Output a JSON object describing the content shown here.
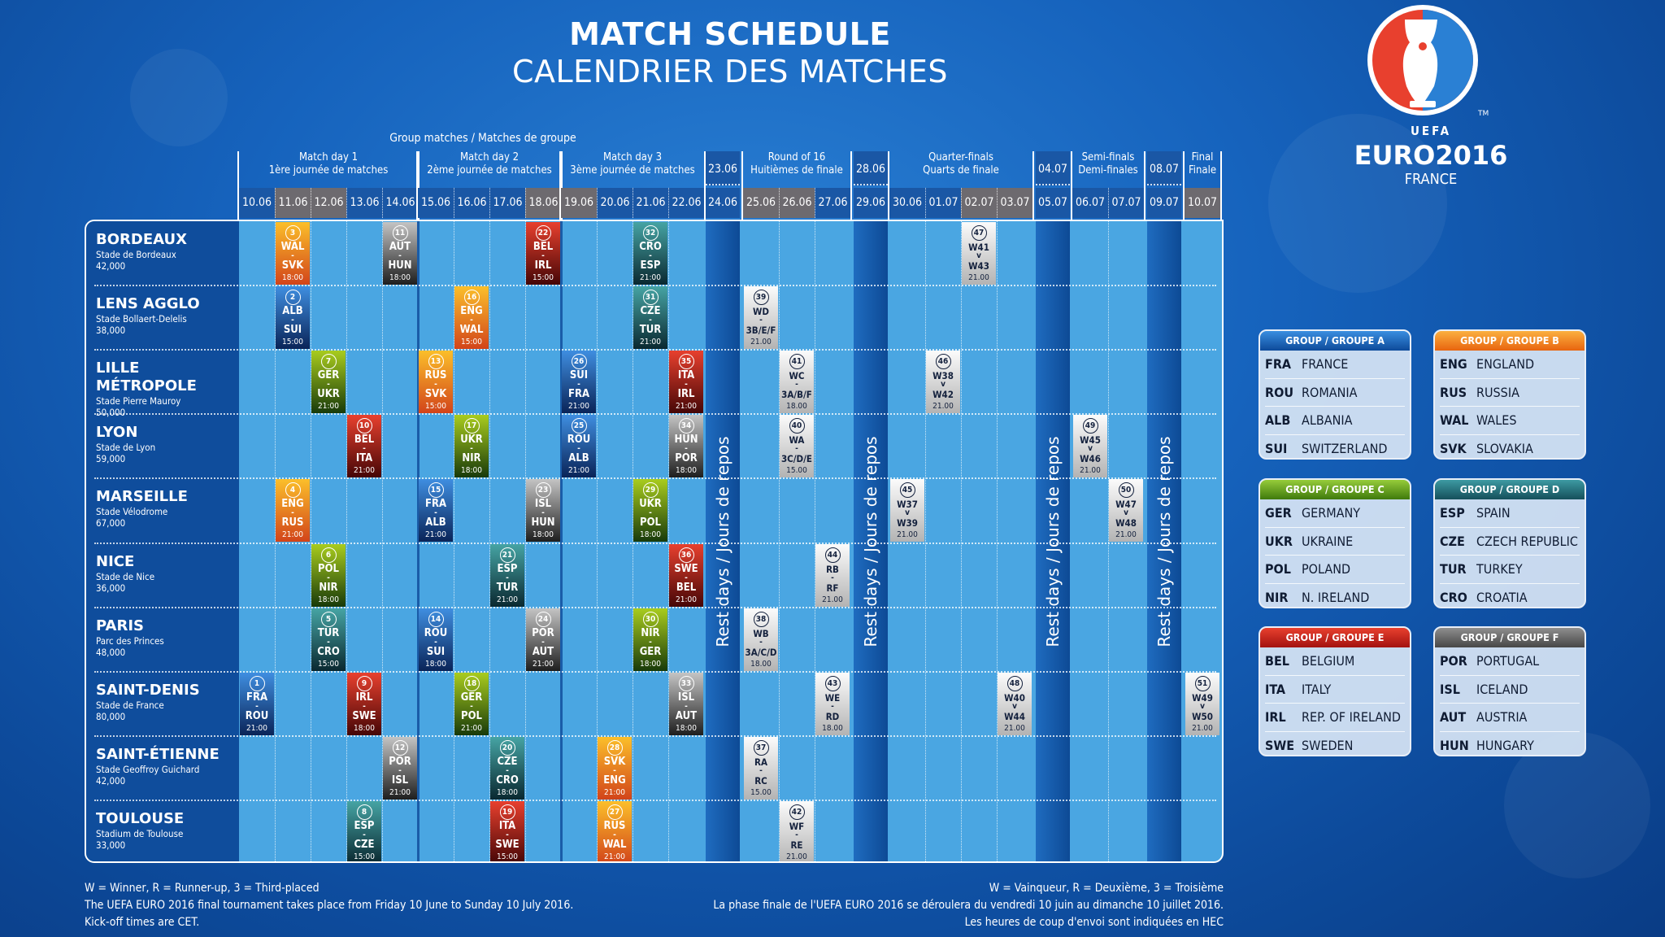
{
  "title": {
    "line1": "MATCH SCHEDULE",
    "line2": "CALENDRIER DES MATCHES"
  },
  "logo": {
    "uefa": "UEFA",
    "euro": "EURO2016",
    "country": "FRANCE",
    "tm": "TM"
  },
  "header": {
    "group_matches": "Group matches / Matches de groupe",
    "phases": [
      {
        "label": "Match day 1",
        "sublabel": "1ère journée de matches",
        "dates": [
          "10.06",
          "11.06",
          "12.06",
          "13.06",
          "14.06"
        ]
      },
      {
        "label": "Match day 2",
        "sublabel": "2ème journée de matches",
        "dates": [
          "15.06",
          "16.06",
          "17.06",
          "18.06"
        ]
      },
      {
        "label": "Match day 3",
        "sublabel": "3ème journée de matches",
        "dates": [
          "19.06",
          "20.06",
          "21.06",
          "22.06"
        ]
      },
      {
        "rest": true,
        "top_date": "23.06",
        "dates": [
          "24.06"
        ]
      },
      {
        "label": "Round of 16",
        "sublabel": "Huitièmes de finale",
        "dates": [
          "25.06",
          "26.06",
          "27.06"
        ]
      },
      {
        "rest": true,
        "top_date": "28.06",
        "dates": [
          "29.06"
        ]
      },
      {
        "label": "Quarter-finals",
        "sublabel": "Quarts de finale",
        "dates": [
          "30.06",
          "01.07",
          "02.07",
          "03.07"
        ]
      },
      {
        "rest": true,
        "top_date": "04.07",
        "dates": [
          "05.07"
        ]
      },
      {
        "label": "Semi-finals",
        "sublabel": "Demi-finales",
        "dates": [
          "06.07",
          "07.07"
        ]
      },
      {
        "rest": true,
        "top_date": "08.07",
        "dates": [
          "09.07"
        ]
      },
      {
        "label": "Final",
        "sublabel": "Finale",
        "dates": [
          "10.07"
        ]
      }
    ],
    "weekend_dates": [
      "11.06",
      "12.06",
      "18.06",
      "19.06",
      "25.06",
      "26.06",
      "02.07",
      "03.07",
      "10.07"
    ],
    "rest_label": "Rest days / Jours de repos"
  },
  "colors": {
    "A": [
      "#3f8ee0",
      "#0a2458"
    ],
    "B": [
      "#fbbf2a",
      "#d2441a"
    ],
    "C": [
      "#a9cc1e",
      "#183a0a"
    ],
    "D": [
      "#46a4a4",
      "#0a2830"
    ],
    "E": [
      "#e8402e",
      "#450606"
    ],
    "F": [
      "#c4c4c4",
      "#1e1e1e"
    ],
    "weekday": "#1a57a5",
    "weekend": "#6d6a6f",
    "grid": "#4aa6e2",
    "venue_panel": "#0f4d9c"
  },
  "venues": [
    {
      "name": "BORDEAUX",
      "stadium": "Stade de Bordeaux",
      "capacity": "42,000"
    },
    {
      "name": "LENS AGGLO",
      "stadium": "Stade Bollaert-Delelis",
      "capacity": "38,000"
    },
    {
      "name": "LILLE MÉTROPOLE",
      "stadium": "Stade Pierre Mauroy",
      "capacity": "50,000"
    },
    {
      "name": "LYON",
      "stadium": "Stade de Lyon",
      "capacity": "59,000"
    },
    {
      "name": "MARSEILLE",
      "stadium": "Stade Vélodrome",
      "capacity": "67,000"
    },
    {
      "name": "NICE",
      "stadium": "Stade de Nice",
      "capacity": "36,000"
    },
    {
      "name": "PARIS",
      "stadium": "Parc des Princes",
      "capacity": "48,000"
    },
    {
      "name": "SAINT-DENIS",
      "stadium": "Stade de France",
      "capacity": "80,000"
    },
    {
      "name": "SAINT-ÉTIENNE",
      "stadium": "Stade Geoffroy Guichard",
      "capacity": "42,000"
    },
    {
      "name": "TOULOUSE",
      "stadium": "Stadium de Toulouse",
      "capacity": "33,000"
    }
  ],
  "matches": [
    {
      "no": "1",
      "venue": 7,
      "date": "10.06",
      "home": "FRA",
      "away": "ROU",
      "time": "21:00",
      "group": "A",
      "sep": "-"
    },
    {
      "no": "2",
      "venue": 1,
      "date": "11.06",
      "home": "ALB",
      "away": "SUI",
      "time": "15:00",
      "group": "A",
      "sep": "-"
    },
    {
      "no": "3",
      "venue": 0,
      "date": "11.06",
      "home": "WAL",
      "away": "SVK",
      "time": "18:00",
      "group": "B",
      "sep": "-"
    },
    {
      "no": "4",
      "venue": 4,
      "date": "11.06",
      "home": "ENG",
      "away": "RUS",
      "time": "21:00",
      "group": "B",
      "sep": "-"
    },
    {
      "no": "5",
      "venue": 6,
      "date": "12.06",
      "home": "TUR",
      "away": "CRO",
      "time": "15:00",
      "group": "D",
      "sep": "-"
    },
    {
      "no": "6",
      "venue": 5,
      "date": "12.06",
      "home": "POL",
      "away": "NIR",
      "time": "18:00",
      "group": "C",
      "sep": "-"
    },
    {
      "no": "7",
      "venue": 2,
      "date": "12.06",
      "home": "GER",
      "away": "UKR",
      "time": "21:00",
      "group": "C",
      "sep": "-"
    },
    {
      "no": "8",
      "venue": 9,
      "date": "13.06",
      "home": "ESP",
      "away": "CZE",
      "time": "15:00",
      "group": "D",
      "sep": "-"
    },
    {
      "no": "9",
      "venue": 7,
      "date": "13.06",
      "home": "IRL",
      "away": "SWE",
      "time": "18:00",
      "group": "E",
      "sep": "-"
    },
    {
      "no": "10",
      "venue": 3,
      "date": "13.06",
      "home": "BEL",
      "away": "ITA",
      "time": "21:00",
      "group": "E",
      "sep": "-"
    },
    {
      "no": "11",
      "venue": 0,
      "date": "14.06",
      "home": "AUT",
      "away": "HUN",
      "time": "18:00",
      "group": "F",
      "sep": "-"
    },
    {
      "no": "12",
      "venue": 8,
      "date": "14.06",
      "home": "POR",
      "away": "ISL",
      "time": "21:00",
      "group": "F",
      "sep": "-"
    },
    {
      "no": "13",
      "venue": 2,
      "date": "15.06",
      "home": "RUS",
      "away": "SVK",
      "time": "15:00",
      "group": "B",
      "sep": "-"
    },
    {
      "no": "14",
      "venue": 6,
      "date": "15.06",
      "home": "ROU",
      "away": "SUI",
      "time": "18:00",
      "group": "A",
      "sep": "-"
    },
    {
      "no": "15",
      "venue": 4,
      "date": "15.06",
      "home": "FRA",
      "away": "ALB",
      "time": "21:00",
      "group": "A",
      "sep": "-"
    },
    {
      "no": "16",
      "venue": 1,
      "date": "16.06",
      "home": "ENG",
      "away": "WAL",
      "time": "15:00",
      "group": "B",
      "sep": "-"
    },
    {
      "no": "17",
      "venue": 3,
      "date": "16.06",
      "home": "UKR",
      "away": "NIR",
      "time": "18:00",
      "group": "C",
      "sep": "-"
    },
    {
      "no": "18",
      "venue": 7,
      "date": "16.06",
      "home": "GER",
      "away": "POL",
      "time": "21:00",
      "group": "C",
      "sep": "-"
    },
    {
      "no": "19",
      "venue": 9,
      "date": "17.06",
      "home": "ITA",
      "away": "SWE",
      "time": "15:00",
      "group": "E",
      "sep": "-"
    },
    {
      "no": "20",
      "venue": 8,
      "date": "17.06",
      "home": "CZE",
      "away": "CRO",
      "time": "18:00",
      "group": "D",
      "sep": "-"
    },
    {
      "no": "21",
      "venue": 5,
      "date": "17.06",
      "home": "ESP",
      "away": "TUR",
      "time": "21:00",
      "group": "D",
      "sep": "-"
    },
    {
      "no": "22",
      "venue": 0,
      "date": "18.06",
      "home": "BEL",
      "away": "IRL",
      "time": "15:00",
      "group": "E",
      "sep": "-"
    },
    {
      "no": "23",
      "venue": 4,
      "date": "18.06",
      "home": "ISL",
      "away": "HUN",
      "time": "18:00",
      "group": "F",
      "sep": "-"
    },
    {
      "no": "24",
      "venue": 6,
      "date": "18.06",
      "home": "POR",
      "away": "AUT",
      "time": "21:00",
      "group": "F",
      "sep": "-"
    },
    {
      "no": "25",
      "venue": 3,
      "date": "19.06",
      "home": "ROU",
      "away": "ALB",
      "time": "21:00",
      "group": "A",
      "sep": "-"
    },
    {
      "no": "26",
      "venue": 2,
      "date": "19.06",
      "home": "SUI",
      "away": "FRA",
      "time": "21:00",
      "group": "A",
      "sep": "-"
    },
    {
      "no": "27",
      "venue": 9,
      "date": "20.06",
      "home": "RUS",
      "away": "WAL",
      "time": "21:00",
      "group": "B",
      "sep": "-"
    },
    {
      "no": "28",
      "venue": 8,
      "date": "20.06",
      "home": "SVK",
      "away": "ENG",
      "time": "21:00",
      "group": "B",
      "sep": "-"
    },
    {
      "no": "29",
      "venue": 4,
      "date": "21.06",
      "home": "UKR",
      "away": "POL",
      "time": "18:00",
      "group": "C",
      "sep": "-"
    },
    {
      "no": "30",
      "venue": 6,
      "date": "21.06",
      "home": "NIR",
      "away": "GER",
      "time": "18:00",
      "group": "C",
      "sep": "-"
    },
    {
      "no": "31",
      "venue": 1,
      "date": "21.06",
      "home": "CZE",
      "away": "TUR",
      "time": "21:00",
      "group": "D",
      "sep": "-"
    },
    {
      "no": "32",
      "venue": 0,
      "date": "21.06",
      "home": "CRO",
      "away": "ESP",
      "time": "21:00",
      "group": "D",
      "sep": "-"
    },
    {
      "no": "33",
      "venue": 7,
      "date": "22.06",
      "home": "ISL",
      "away": "AUT",
      "time": "18:00",
      "group": "F",
      "sep": "-"
    },
    {
      "no": "34",
      "venue": 3,
      "date": "22.06",
      "home": "HUN",
      "away": "POR",
      "time": "18:00",
      "group": "F",
      "sep": "-"
    },
    {
      "no": "35",
      "venue": 2,
      "date": "22.06",
      "home": "ITA",
      "away": "IRL",
      "time": "21:00",
      "group": "E",
      "sep": "-"
    },
    {
      "no": "36",
      "venue": 5,
      "date": "22.06",
      "home": "SWE",
      "away": "BEL",
      "time": "21:00",
      "group": "E",
      "sep": "-"
    },
    {
      "no": "37",
      "venue": 8,
      "date": "25.06",
      "home": "RA",
      "away": "RC",
      "time": "15.00",
      "sep": "-"
    },
    {
      "no": "38",
      "venue": 6,
      "date": "25.06",
      "home": "WB",
      "away": "3A/C/D",
      "time": "18.00",
      "sep": "-"
    },
    {
      "no": "39",
      "venue": 1,
      "date": "25.06",
      "home": "WD",
      "away": "3B/E/F",
      "time": "21.00",
      "sep": "-"
    },
    {
      "no": "40",
      "venue": 3,
      "date": "26.06",
      "home": "WA",
      "away": "3C/D/E",
      "time": "15.00",
      "sep": "-"
    },
    {
      "no": "41",
      "venue": 2,
      "date": "26.06",
      "home": "WC",
      "away": "3A/B/F",
      "time": "18.00",
      "sep": "-"
    },
    {
      "no": "42",
      "venue": 9,
      "date": "26.06",
      "home": "WF",
      "away": "RE",
      "time": "21.00",
      "sep": "-"
    },
    {
      "no": "43",
      "venue": 7,
      "date": "27.06",
      "home": "WE",
      "away": "RD",
      "time": "18.00",
      "sep": "-"
    },
    {
      "no": "44",
      "venue": 5,
      "date": "27.06",
      "home": "RB",
      "away": "RF",
      "time": "21.00",
      "sep": "-"
    },
    {
      "no": "45",
      "venue": 4,
      "date": "30.06",
      "home": "W37",
      "away": "W39",
      "time": "21.00",
      "sep": "v"
    },
    {
      "no": "46",
      "venue": 2,
      "date": "01.07",
      "home": "W38",
      "away": "W42",
      "time": "21.00",
      "sep": "v"
    },
    {
      "no": "47",
      "venue": 0,
      "date": "02.07",
      "home": "W41",
      "away": "W43",
      "time": "21.00",
      "sep": "v"
    },
    {
      "no": "48",
      "venue": 7,
      "date": "03.07",
      "home": "W40",
      "away": "W44",
      "time": "21.00",
      "sep": "v"
    },
    {
      "no": "49",
      "venue": 3,
      "date": "06.07",
      "home": "W45",
      "away": "W46",
      "time": "21.00",
      "sep": "v"
    },
    {
      "no": "50",
      "venue": 4,
      "date": "07.07",
      "home": "W47",
      "away": "W48",
      "time": "21.00",
      "sep": "v"
    },
    {
      "no": "51",
      "venue": 7,
      "date": "10.07",
      "home": "W49",
      "away": "W50",
      "time": "21.00",
      "sep": "v"
    }
  ],
  "groups": [
    {
      "title": "GROUP / GROUPE A",
      "key": "A",
      "header": [
        "#3a8ee0",
        "#0d4a9a"
      ],
      "teams": [
        [
          "FRA",
          "FRANCE"
        ],
        [
          "ROU",
          "ROMANIA"
        ],
        [
          "ALB",
          "ALBANIA"
        ],
        [
          "SUI",
          "SWITZERLAND"
        ]
      ]
    },
    {
      "title": "GROUP / GROUPE B",
      "key": "B",
      "header": [
        "#fbb040",
        "#e8640f"
      ],
      "teams": [
        [
          "ENG",
          "ENGLAND"
        ],
        [
          "RUS",
          "RUSSIA"
        ],
        [
          "WAL",
          "WALES"
        ],
        [
          "SVK",
          "SLOVAKIA"
        ]
      ]
    },
    {
      "title": "GROUP / GROUPE C",
      "key": "C",
      "header": [
        "#96cc3a",
        "#3f7a0c"
      ],
      "teams": [
        [
          "GER",
          "GERMANY"
        ],
        [
          "UKR",
          "UKRAINE"
        ],
        [
          "POL",
          "POLAND"
        ],
        [
          "NIR",
          "N. IRELAND"
        ]
      ]
    },
    {
      "title": "GROUP / GROUPE D",
      "key": "D",
      "header": [
        "#3d9aa2",
        "#154f5a"
      ],
      "teams": [
        [
          "ESP",
          "SPAIN"
        ],
        [
          "CZE",
          "CZECH REPUBLIC"
        ],
        [
          "TUR",
          "TURKEY"
        ],
        [
          "CRO",
          "CROATIA"
        ]
      ]
    },
    {
      "title": "GROUP / GROUPE E",
      "key": "E",
      "header": [
        "#e8402e",
        "#a31210"
      ],
      "teams": [
        [
          "BEL",
          "BELGIUM"
        ],
        [
          "ITA",
          "ITALY"
        ],
        [
          "IRL",
          "REP. OF IRELAND"
        ],
        [
          "SWE",
          "SWEDEN"
        ]
      ]
    },
    {
      "title": "GROUP / GROUPE F",
      "key": "F",
      "header": [
        "#8e8e8e",
        "#474747"
      ],
      "teams": [
        [
          "POR",
          "PORTUGAL"
        ],
        [
          "ISL",
          "ICELAND"
        ],
        [
          "AUT",
          "AUSTRIA"
        ],
        [
          "HUN",
          "HUNGARY"
        ]
      ]
    }
  ],
  "footer": {
    "left": [
      "W = Winner, R = Runner-up, 3 = Third-placed",
      "The UEFA EURO 2016 final tournament takes place from Friday 10 June to Sunday 10 July 2016.",
      "Kick-off times are CET."
    ],
    "right": [
      "W = Vainqueur, R = Deuxième, 3 = Troisième",
      "La phase finale de l'UEFA EURO 2016 se déroulera du vendredi 10 juin au dimanche 10 juillet 2016.",
      "Les heures de coup d'envoi sont indiquées en HEC"
    ]
  }
}
